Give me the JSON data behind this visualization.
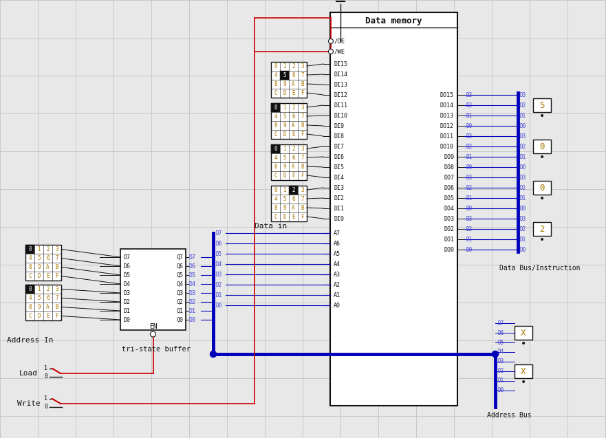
{
  "bg_color": "#e8e8e8",
  "grid_color": "#c8c8c8",
  "blue": "#0000bb",
  "red": "#cc0000",
  "black": "#111111",
  "lblue": "#4444dd",
  "orange": "#aa7700",
  "white": "#ffffff",
  "data_display_values": [
    "5",
    "0",
    "0",
    "2"
  ],
  "addr_display_values": [
    "X",
    "X"
  ],
  "di_labels": [
    "DI15",
    "DI14",
    "DI13",
    "DI12",
    "DI11",
    "DI10",
    "DI9",
    "DI8",
    "DI7",
    "DI6",
    "DI5",
    "DI4",
    "DI3",
    "DI2",
    "DI1",
    "DI0"
  ],
  "addr_labels": [
    "A7",
    "A6",
    "A5",
    "A4",
    "A3",
    "A2",
    "A1",
    "A0"
  ],
  "do_labels": [
    "DO15",
    "DO14",
    "DO13",
    "DO12",
    "DO11",
    "DO10",
    "DO9",
    "DO8",
    "DO7",
    "DO6",
    "DO5",
    "DO4",
    "DO3",
    "DO2",
    "DO1",
    "DO0"
  ],
  "buf_in_labels": [
    "D7",
    "D6",
    "D5",
    "D4",
    "D3",
    "D2",
    "D1",
    "D0"
  ],
  "buf_out_labels": [
    "Q7",
    "Q6",
    "Q5",
    "Q4",
    "Q3",
    "Q2",
    "Q1",
    "Q0"
  ],
  "bus_wire_labels": [
    "D7",
    "D6",
    "D5",
    "D4",
    "D3",
    "D2",
    "D1",
    "D0"
  ],
  "do_sub": [
    "D3",
    "D2",
    "D1",
    "D0"
  ],
  "addr_sub_top": [
    "D7",
    "D6",
    "D5",
    "D4"
  ],
  "addr_sub_bot": [
    "D3",
    "D2",
    "D1",
    "D0"
  ],
  "datain_kbd_highlights": [
    "5",
    "0",
    "0",
    "2"
  ],
  "addr_kbd_highlights": [
    "0",
    "0"
  ],
  "title": "Data memory"
}
